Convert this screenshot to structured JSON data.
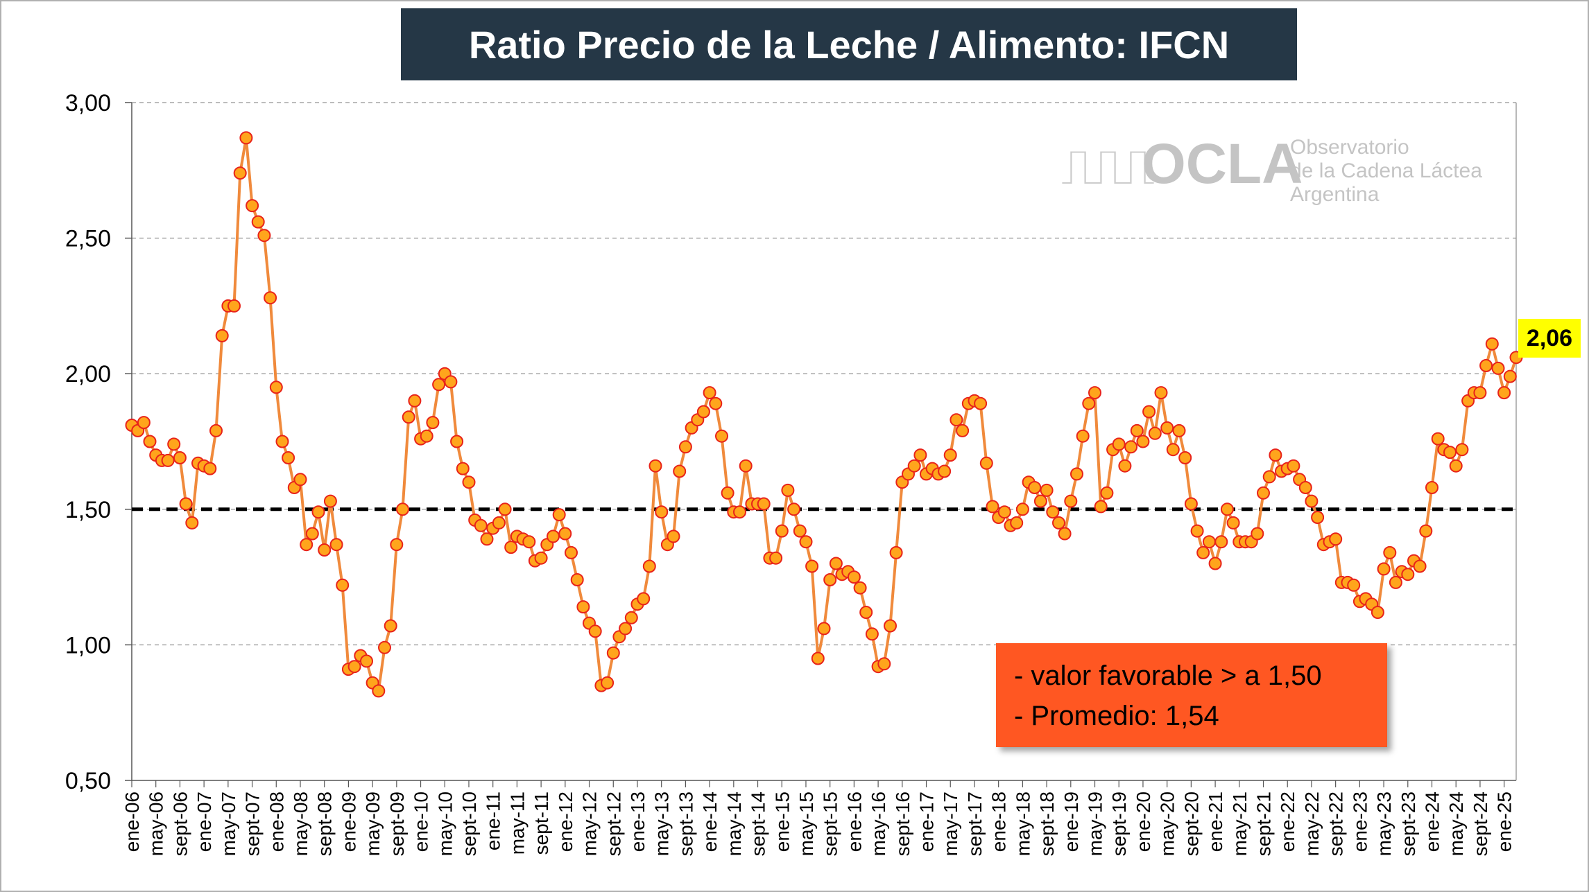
{
  "header": {
    "title": "Ratio Precio de la Leche / Alimento: IFCN"
  },
  "logo": {
    "name": "OCLA",
    "line1": "Observatorio",
    "line2": "de la Cadena Láctea",
    "line3": "Argentina"
  },
  "legend_box": {
    "line1": "- valor favorable > a 1,50",
    "line2": "- Promedio: 1,54"
  },
  "last_value_label": "2,06",
  "colors": {
    "line": "#f08a3c",
    "marker_fill": "#ffa51c",
    "marker_edge": "#e8231a",
    "reference_line": "#000000",
    "title_bg": "#253746",
    "note_bg": "#ff5722",
    "highlight": "#ffff00"
  },
  "chart_data": {
    "type": "line",
    "title": "Ratio Precio de la Leche / Alimento: IFCN",
    "xlabel": "",
    "ylabel": "",
    "ylim": [
      0.5,
      3.0
    ],
    "y_ticks": [
      "0,50",
      "1,00",
      "1,50",
      "2,00",
      "2,50",
      "3,00"
    ],
    "grid": "horizontal dashed",
    "x_tick_labels": [
      "ene-06",
      "may-06",
      "sept-06",
      "ene-07",
      "may-07",
      "sept-07",
      "ene-08",
      "may-08",
      "sept-08",
      "ene-09",
      "may-09",
      "sept-09",
      "ene-10",
      "may-10",
      "sept-10",
      "ene-11",
      "may-11",
      "sept-11",
      "ene-12",
      "may-12",
      "sept-12",
      "ene-13",
      "may-13",
      "sept-13",
      "ene-14",
      "may-14",
      "sept-14",
      "ene-15",
      "may-15",
      "sept-15",
      "ene-16",
      "may-16",
      "sept-16",
      "ene-17",
      "may-17",
      "sept-17",
      "ene-18",
      "may-18",
      "sept-18",
      "ene-19",
      "may-19",
      "sept-19",
      "ene-20",
      "may-20",
      "sept-20",
      "ene-21",
      "may-21",
      "sept-21",
      "ene-22",
      "may-22",
      "sept-22",
      "ene-23",
      "may-23",
      "sept-23",
      "ene-24",
      "may-24",
      "sept-24",
      "ene-25"
    ],
    "reference_line": {
      "value": 1.5
    },
    "series": [
      {
        "values": [
          1.81,
          1.79,
          1.82,
          1.75,
          1.7,
          1.68,
          1.68,
          1.74,
          1.69,
          1.52,
          1.45,
          1.67,
          1.66,
          1.65,
          1.79,
          2.14,
          2.25,
          2.25,
          2.74,
          2.87,
          2.62,
          2.56,
          2.51,
          2.28,
          1.95,
          1.75,
          1.69,
          1.58,
          1.61,
          1.37,
          1.41,
          1.49,
          1.35,
          1.53,
          1.37,
          1.22,
          0.91,
          0.92,
          0.96,
          0.94,
          0.86,
          0.83,
          0.99,
          1.07,
          1.37,
          1.5,
          1.84,
          1.9,
          1.76,
          1.77,
          1.82,
          1.96,
          2.0,
          1.97,
          1.75,
          1.65,
          1.6,
          1.46,
          1.44,
          1.39,
          1.43,
          1.45,
          1.5,
          1.36,
          1.4,
          1.39,
          1.38,
          1.31,
          1.32,
          1.37,
          1.4,
          1.48,
          1.41,
          1.34,
          1.24,
          1.14,
          1.08,
          1.05,
          0.85,
          0.86,
          0.97,
          1.03,
          1.06,
          1.1,
          1.15,
          1.17,
          1.29,
          1.66,
          1.49,
          1.37,
          1.4,
          1.64,
          1.73,
          1.8,
          1.83,
          1.86,
          1.93,
          1.89,
          1.77,
          1.56,
          1.49,
          1.49,
          1.66,
          1.52,
          1.52,
          1.52,
          1.32,
          1.32,
          1.42,
          1.57,
          1.5,
          1.42,
          1.38,
          1.29,
          0.95,
          1.06,
          1.24,
          1.3,
          1.26,
          1.27,
          1.25,
          1.21,
          1.12,
          1.04,
          0.92,
          0.93,
          1.07,
          1.34,
          1.6,
          1.63,
          1.66,
          1.7,
          1.63,
          1.65,
          1.63,
          1.64,
          1.7,
          1.83,
          1.79,
          1.89,
          1.9,
          1.89,
          1.67,
          1.51,
          1.47,
          1.49,
          1.44,
          1.45,
          1.5,
          1.6,
          1.58,
          1.53,
          1.57,
          1.49,
          1.45,
          1.41,
          1.53,
          1.63,
          1.77,
          1.89,
          1.93,
          1.51,
          1.56,
          1.72,
          1.74,
          1.66,
          1.73,
          1.79,
          1.75,
          1.86,
          1.78,
          1.93,
          1.8,
          1.72,
          1.79,
          1.69,
          1.52,
          1.42,
          1.34,
          1.38,
          1.3,
          1.38,
          1.5,
          1.45,
          1.38,
          1.38,
          1.38,
          1.41,
          1.56,
          1.62,
          1.7,
          1.64,
          1.65,
          1.66,
          1.61,
          1.58,
          1.53,
          1.47,
          1.37,
          1.38,
          1.39,
          1.23,
          1.23,
          1.22,
          1.16,
          1.17,
          1.15,
          1.12,
          1.28,
          1.34,
          1.23,
          1.27,
          1.26,
          1.31,
          1.29,
          1.42,
          1.58,
          1.76,
          1.72,
          1.71,
          1.66,
          1.72,
          1.9,
          1.93,
          1.93,
          2.03,
          2.11,
          2.02,
          1.93,
          1.99,
          2.06
        ]
      }
    ]
  }
}
